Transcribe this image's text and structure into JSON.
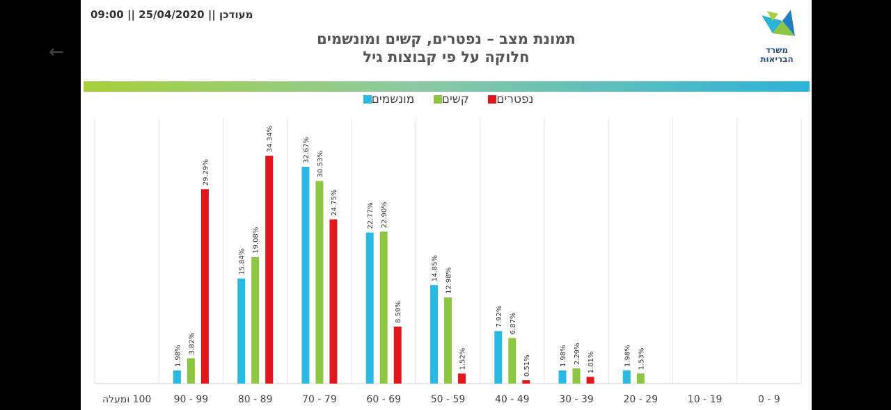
{
  "header": {
    "updated": "מעודכן || 25/04/2020 || 09:00",
    "title_line1": "תמונת מצב – נפטרים, קשים ומונשמים",
    "title_line2": "חלוקה על פי קבוצות גיל"
  },
  "logo": {
    "line1": "משרד",
    "line2": "הבריאות"
  },
  "colors": {
    "ventilated": "#29b9e2",
    "severe": "#8dc641",
    "deceased": "#e3171b"
  },
  "chart_data": {
    "type": "bar",
    "categories": [
      "100 ומעלה",
      "99 - 90",
      "89 - 80",
      "79 - 70",
      "69 - 60",
      "59 - 50",
      "49 - 40",
      "39 - 30",
      "29 - 20",
      "19 - 10",
      "9 - 0"
    ],
    "series": [
      {
        "name": "מונשמים",
        "values": [
          null,
          1.98,
          15.84,
          32.67,
          22.77,
          14.85,
          7.92,
          1.98,
          1.98,
          null,
          null
        ],
        "labels": [
          "",
          "1.98%",
          "15.84%",
          "32.67%",
          "22.77%",
          "14.85%",
          "7.92%",
          "1.98%",
          "1.98%",
          "",
          ""
        ]
      },
      {
        "name": "קשים",
        "values": [
          null,
          3.82,
          19.08,
          30.53,
          22.9,
          12.98,
          6.87,
          2.29,
          1.53,
          null,
          null
        ],
        "labels": [
          "",
          "3.82%",
          "19.08%",
          "30.53%",
          "22.90%",
          "12.98%",
          "6.87%",
          "2.29%",
          "1.53%",
          "",
          ""
        ]
      },
      {
        "name": "נפטרים",
        "values": [
          null,
          29.29,
          34.34,
          24.75,
          8.59,
          1.52,
          0.51,
          1.01,
          null,
          null,
          null
        ],
        "labels": [
          "",
          "29.29%",
          "34.34%",
          "24.75%",
          "8.59%",
          "1.52%",
          "0.51%",
          "1.01%",
          "",
          "",
          ""
        ]
      }
    ],
    "legend_order": [
      "מונשמים",
      "קשים",
      "נפטרים"
    ],
    "ylim": [
      0,
      40
    ],
    "grid": "vertical",
    "legend": "top"
  }
}
